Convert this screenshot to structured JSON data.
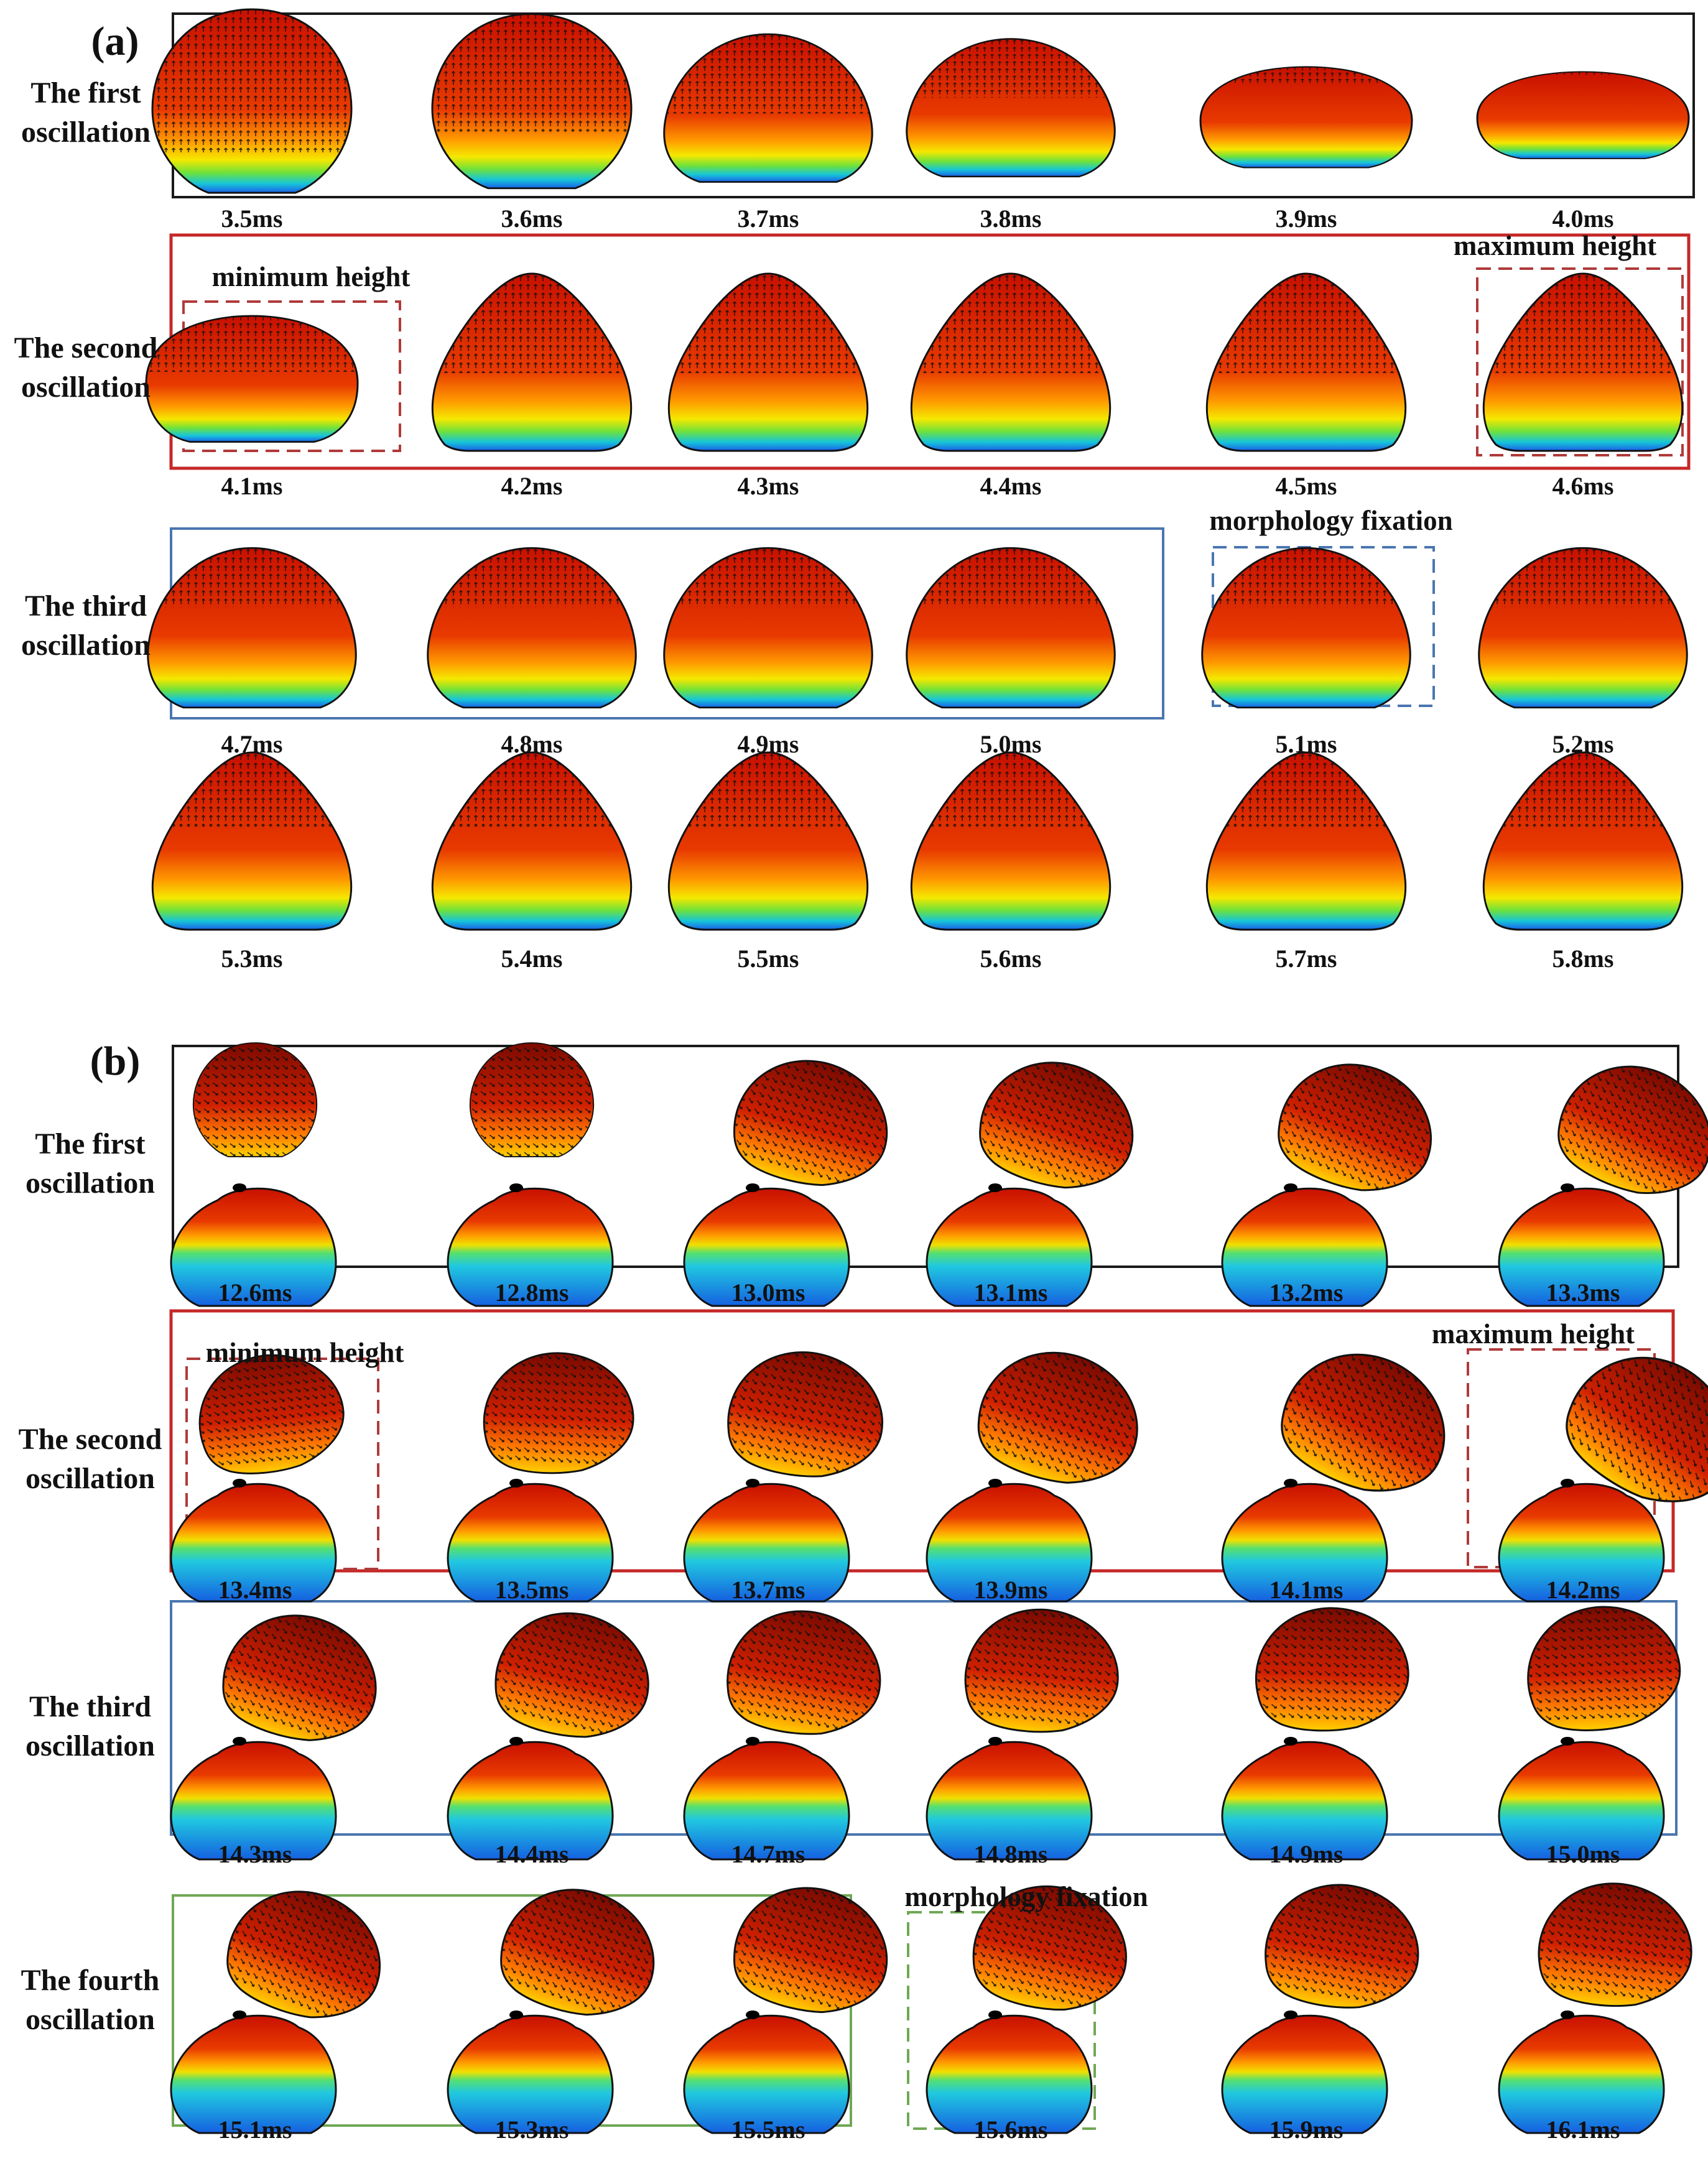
{
  "panels": [
    {
      "id": "a",
      "label": "(a)",
      "rows": [
        {
          "label_lines": [
            "The first",
            "oscillation"
          ],
          "times": [
            "3.5ms",
            "3.6ms",
            "3.7ms",
            "3.8ms",
            "3.9ms",
            "4.0ms"
          ]
        },
        {
          "label_lines": [
            "The second",
            "oscillation"
          ],
          "times": [
            "4.1ms",
            "4.2ms",
            "4.3ms",
            "4.4ms",
            "4.5ms",
            "4.6ms"
          ]
        },
        {
          "label_lines": [
            "The third",
            "oscillation"
          ],
          "times": [
            "4.7ms",
            "4.8ms",
            "4.9ms",
            "5.0ms",
            "5.1ms",
            "5.2ms"
          ]
        },
        {
          "label_lines": [],
          "times": [
            "5.3ms",
            "5.4ms",
            "5.5ms",
            "5.6ms",
            "5.7ms",
            "5.8ms"
          ]
        }
      ],
      "annotations": {
        "min_height": "minimum height",
        "max_height": "maximum height",
        "fixation": "morphology fixation"
      }
    },
    {
      "id": "b",
      "label": "(b)",
      "rows": [
        {
          "label_lines": [
            "The first",
            "oscillation"
          ],
          "times": [
            "12.6ms",
            "12.8ms",
            "13.0ms",
            "13.1ms",
            "13.2ms",
            "13.3ms"
          ]
        },
        {
          "label_lines": [
            "The second",
            "oscillation"
          ],
          "times": [
            "13.4ms",
            "13.5ms",
            "13.7ms",
            "13.9ms",
            "14.1ms",
            "14.2ms"
          ]
        },
        {
          "label_lines": [
            "The third",
            "oscillation"
          ],
          "times": [
            "14.3ms",
            "14.4ms",
            "14.7ms",
            "14.8ms",
            "14.9ms",
            "15.0ms"
          ]
        },
        {
          "label_lines": [
            "The fourth",
            "oscillation"
          ],
          "times": [
            "15.1ms",
            "15.3ms",
            "15.5ms",
            "15.6ms",
            "15.9ms",
            "16.1ms"
          ]
        }
      ],
      "annotations": {
        "min_height": "minimum height",
        "max_height": "maximum height",
        "fixation": "morphology fixation"
      }
    }
  ],
  "colors": {
    "first_box": "#1a1a1a",
    "second_box": "#c62828",
    "second_dashed": "#b03a3a",
    "third_box": "#4a76b0",
    "third_dashed": "#4a76b0",
    "fourth_box": "#6fa855",
    "fourth_dashed": "#6fa855",
    "outline": "#111111"
  }
}
